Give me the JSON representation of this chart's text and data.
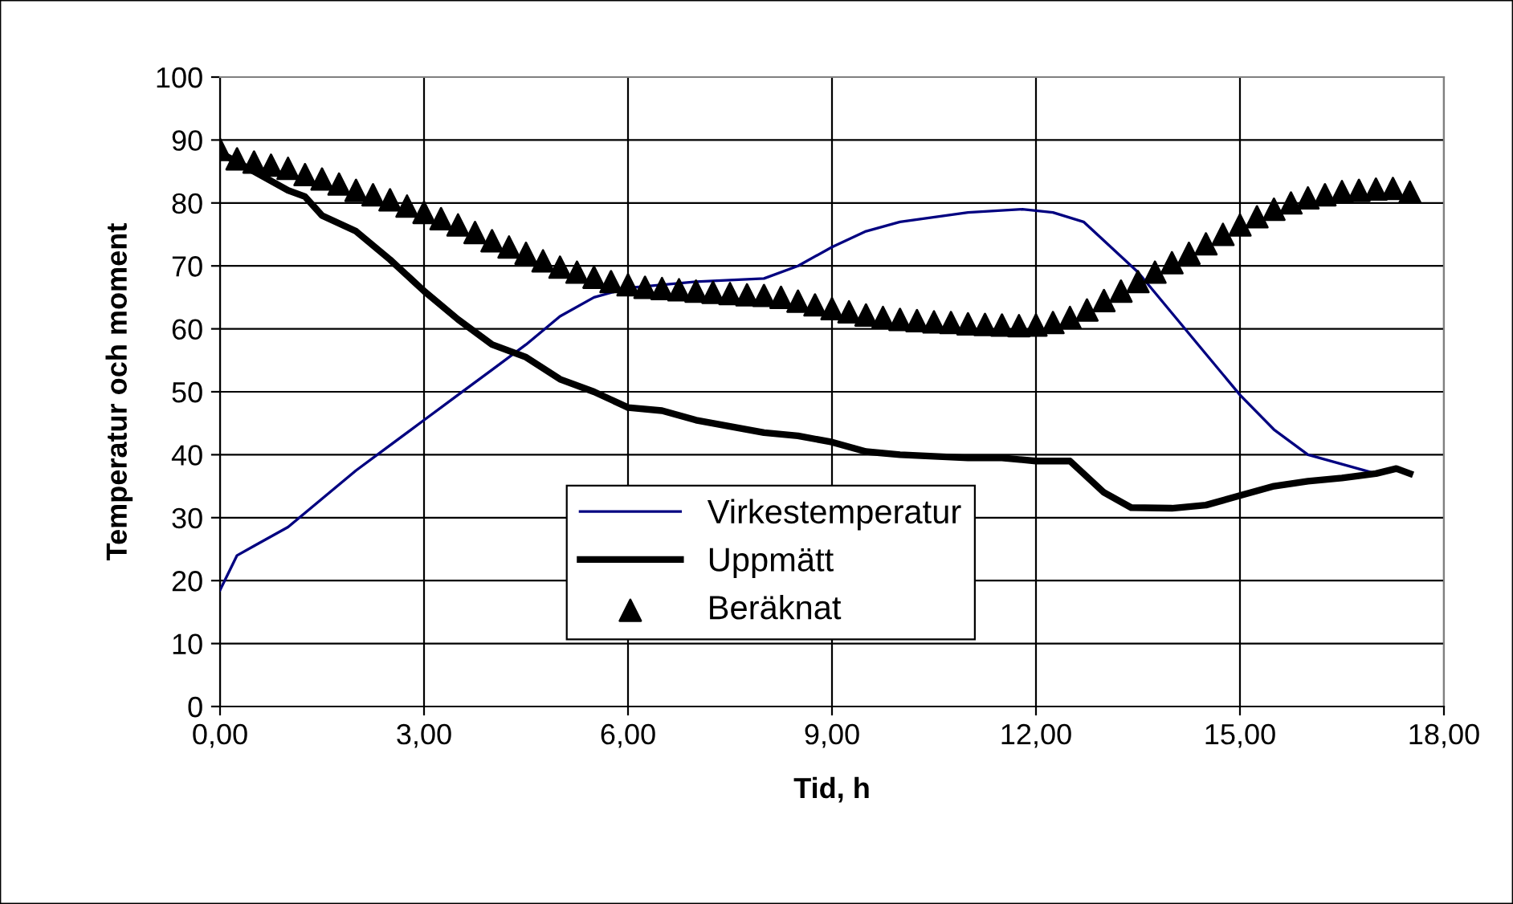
{
  "chart_data": {
    "type": "line",
    "xlabel": "Tid, h",
    "ylabel": "Temperatur och moment",
    "xlim": [
      0,
      18
    ],
    "xticks": [
      {
        "value": 0,
        "label": "0,00"
      },
      {
        "value": 3,
        "label": "3,00"
      },
      {
        "value": 6,
        "label": "6,00"
      },
      {
        "value": 9,
        "label": "9,00"
      },
      {
        "value": 12,
        "label": "12,00"
      },
      {
        "value": 15,
        "label": "15,00"
      },
      {
        "value": 18,
        "label": "18,00"
      }
    ],
    "ylim": [
      0,
      100
    ],
    "yticks": [
      0,
      10,
      20,
      30,
      40,
      50,
      60,
      70,
      80,
      90,
      100
    ],
    "grid": true,
    "legend": "bottom",
    "series": [
      {
        "name": "Virkestemperatur",
        "color": "#000080",
        "marker": "none",
        "x": [
          0,
          0.25,
          0.5,
          1,
          1.5,
          2,
          2.5,
          3,
          3.5,
          4,
          4.5,
          5,
          5.5,
          6,
          7,
          8,
          8.5,
          9,
          9.5,
          10,
          11,
          11.8,
          12.25,
          12.7,
          13,
          13.5,
          14,
          14.5,
          15,
          15.5,
          16,
          16.5,
          17
        ],
        "values": [
          18.5,
          24,
          25.5,
          28.5,
          33,
          37.5,
          41.5,
          45.5,
          49.5,
          53.5,
          57.5,
          62,
          65,
          66.5,
          67.5,
          68,
          70,
          73,
          75.5,
          77,
          78.5,
          79,
          78.5,
          77,
          74,
          69,
          62.5,
          56,
          49.5,
          44,
          40,
          38.5,
          37
        ]
      },
      {
        "name": "Uppmätt",
        "color": "#000000",
        "marker": "none",
        "x": [
          0,
          0.5,
          1,
          1.25,
          1.5,
          2,
          2.5,
          3,
          3.5,
          4,
          4.5,
          5,
          5.5,
          6,
          6.5,
          7,
          7.5,
          8,
          8.5,
          9,
          9.5,
          10,
          11,
          11.5,
          12,
          12.5,
          13,
          13.4,
          14,
          14.5,
          15,
          15.5,
          16,
          16.5,
          17,
          17.3,
          17.5
        ],
        "values": [
          88,
          85,
          82,
          81,
          78,
          75.5,
          71,
          66,
          61.5,
          57.5,
          55.5,
          52,
          50,
          47.5,
          47,
          45.5,
          44.5,
          43.5,
          43,
          42,
          40.5,
          40,
          39.5,
          39.5,
          39,
          39,
          34,
          31.6,
          31.5,
          32,
          33.5,
          35,
          35.8,
          36.3,
          37,
          37.8,
          37
        ]
      },
      {
        "name": "Beräknat",
        "color": "#000000",
        "type": "scatter",
        "marker": "triangle",
        "x": [
          0,
          0.25,
          0.5,
          0.75,
          1,
          1.25,
          1.5,
          1.75,
          2,
          2.25,
          2.5,
          2.75,
          3,
          3.25,
          3.5,
          3.75,
          4,
          4.25,
          4.5,
          4.75,
          5,
          5.25,
          5.5,
          5.75,
          6,
          6.25,
          6.5,
          6.75,
          7,
          7.25,
          7.5,
          7.75,
          8,
          8.25,
          8.5,
          8.75,
          9,
          9.25,
          9.5,
          9.75,
          10,
          10.25,
          10.5,
          10.75,
          11,
          11.25,
          11.5,
          11.75,
          12,
          12.25,
          12.5,
          12.75,
          13,
          13.25,
          13.5,
          13.75,
          14,
          14.25,
          14.5,
          14.75,
          15,
          15.25,
          15.5,
          15.75,
          16,
          16.25,
          16.5,
          16.75,
          17,
          17.25,
          17.5
        ],
        "values": [
          88.5,
          87,
          86.5,
          86,
          85.5,
          84.5,
          83.8,
          83,
          82,
          81.3,
          80.5,
          79.5,
          78.5,
          77.5,
          76.5,
          75.3,
          74,
          73,
          72,
          70.8,
          69.8,
          69,
          68.2,
          67.5,
          67,
          66.6,
          66.4,
          66.2,
          66,
          65.8,
          65.6,
          65.4,
          65.3,
          65,
          64.4,
          63.8,
          63.2,
          62.7,
          62.2,
          61.8,
          61.5,
          61.3,
          61.1,
          61,
          60.8,
          60.7,
          60.6,
          60.5,
          60.6,
          61,
          61.8,
          63,
          64.5,
          66,
          67.5,
          69,
          70.5,
          72,
          73.5,
          75,
          76.5,
          77.8,
          79,
          80,
          80.8,
          81.3,
          81.8,
          82,
          82.2,
          82.3,
          81.7
        ]
      }
    ]
  }
}
